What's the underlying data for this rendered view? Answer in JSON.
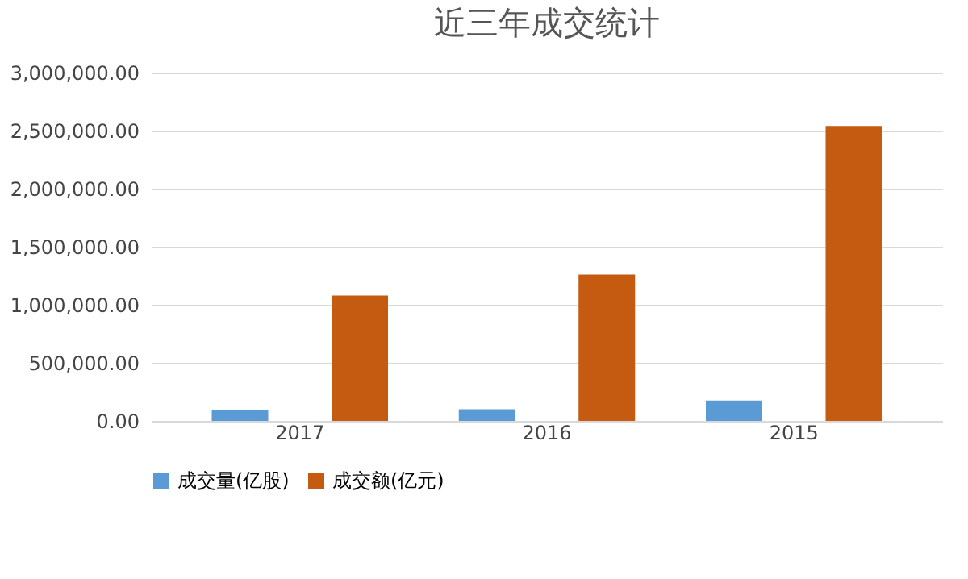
{
  "chart_data": {
    "type": "bar",
    "title": "近三年成交统计",
    "categories": [
      "2017",
      "2016",
      "2015"
    ],
    "series": [
      {
        "name": "成交量(亿股)",
        "color": "#5b9bd5",
        "values": [
          90000,
          100000,
          175000
        ]
      },
      {
        "name": "成交额(亿元)",
        "color": "#c55a11",
        "values": [
          1080000,
          1260000,
          2540000
        ]
      }
    ],
    "ylim": [
      0,
      3000000
    ],
    "yticks": [
      {
        "value": 0,
        "label": "0.00"
      },
      {
        "value": 500000,
        "label": "500,000.00"
      },
      {
        "value": 1000000,
        "label": "1,000,000.00"
      },
      {
        "value": 1500000,
        "label": "1,500,000.00"
      },
      {
        "value": 2000000,
        "label": "2,000,000.00"
      },
      {
        "value": 2500000,
        "label": "2,500,000.00"
      },
      {
        "value": 3000000,
        "label": "3,000,000.00"
      }
    ],
    "grid": "y",
    "legend": "bottom"
  }
}
